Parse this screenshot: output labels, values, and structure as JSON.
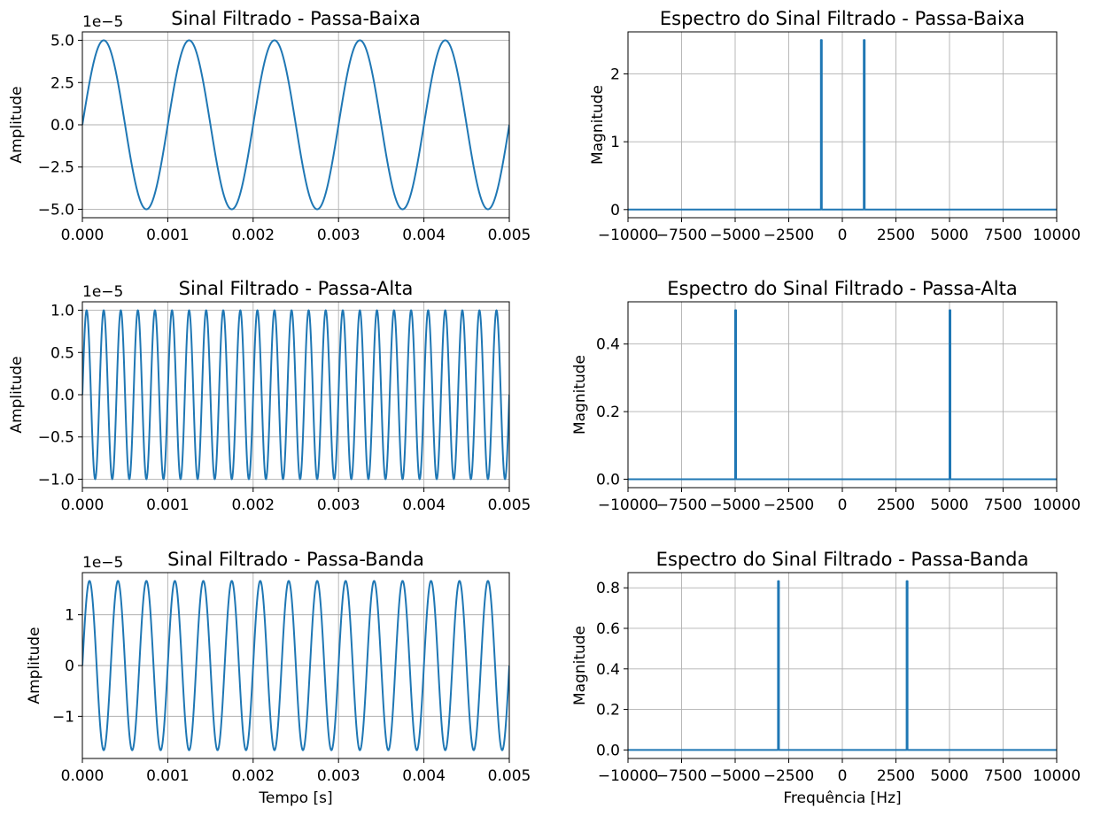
{
  "colors": {
    "line": "#1f77b4"
  },
  "chart_data": [
    {
      "type": "line",
      "title": "Sinal Filtrado - Passa-Baixa",
      "xlabel": "",
      "ylabel": "Amplitude",
      "xlim": [
        0,
        0.005
      ],
      "ylim": [
        -5.5,
        5.5
      ],
      "offset_label": "1e−5",
      "grid": true,
      "xticks": [
        0,
        0.001,
        0.002,
        0.003,
        0.004,
        0.005
      ],
      "xtick_labels": [
        "0.000",
        "0.001",
        "0.002",
        "0.003",
        "0.004",
        "0.005"
      ],
      "yticks": [
        5.0,
        2.5,
        0.0,
        -2.5,
        -5.0
      ],
      "ytick_labels": [
        "5.0",
        "2.5",
        "0.0",
        "−2.5",
        "−5.0"
      ],
      "series": [
        {
          "kind": "sine",
          "amplitude": 5.0,
          "frequency_hz": 1000
        }
      ]
    },
    {
      "type": "line",
      "title": "Espectro do Sinal Filtrado - Passa-Baixa",
      "xlabel": "",
      "ylabel": "Magnitude",
      "xlim": [
        -10000,
        10000
      ],
      "ylim": [
        -0.12,
        2.62
      ],
      "grid": true,
      "xticks": [
        -10000,
        -7500,
        -5000,
        -2500,
        0,
        2500,
        5000,
        7500,
        10000
      ],
      "xtick_labels": [
        "−10000",
        "−7500",
        "−5000",
        "−2500",
        "0",
        "2500",
        "5000",
        "7500",
        "10000"
      ],
      "yticks": [
        2,
        1,
        0
      ],
      "ytick_labels": [
        "2",
        "1",
        "0"
      ],
      "series": [
        {
          "kind": "spectrum",
          "baseline": 0,
          "peaks": [
            {
              "x": -1000,
              "y": 2.5
            },
            {
              "x": 1000,
              "y": 2.5
            }
          ]
        }
      ]
    },
    {
      "type": "line",
      "title": "Sinal Filtrado - Passa-Alta",
      "xlabel": "",
      "ylabel": "Amplitude",
      "xlim": [
        0,
        0.005
      ],
      "ylim": [
        -1.1,
        1.1
      ],
      "offset_label": "1e−5",
      "grid": true,
      "xticks": [
        0,
        0.001,
        0.002,
        0.003,
        0.004,
        0.005
      ],
      "xtick_labels": [
        "0.000",
        "0.001",
        "0.002",
        "0.003",
        "0.004",
        "0.005"
      ],
      "yticks": [
        1.0,
        0.5,
        0.0,
        -0.5,
        -1.0
      ],
      "ytick_labels": [
        "1.0",
        "0.5",
        "0.0",
        "−0.5",
        "−1.0"
      ],
      "series": [
        {
          "kind": "sine",
          "amplitude": 1.0,
          "frequency_hz": 5000
        }
      ]
    },
    {
      "type": "line",
      "title": "Espectro do Sinal Filtrado - Passa-Alta",
      "xlabel": "",
      "ylabel": "Magnitude",
      "xlim": [
        -10000,
        10000
      ],
      "ylim": [
        -0.025,
        0.525
      ],
      "grid": true,
      "xticks": [
        -10000,
        -7500,
        -5000,
        -2500,
        0,
        2500,
        5000,
        7500,
        10000
      ],
      "xtick_labels": [
        "−10000",
        "−7500",
        "−5000",
        "−2500",
        "0",
        "2500",
        "5000",
        "7500",
        "10000"
      ],
      "yticks": [
        0.4,
        0.2,
        0.0
      ],
      "ytick_labels": [
        "0.4",
        "0.2",
        "0.0"
      ],
      "series": [
        {
          "kind": "spectrum",
          "baseline": 0,
          "peaks": [
            {
              "x": -5000,
              "y": 0.5
            },
            {
              "x": 5000,
              "y": 0.5
            }
          ]
        }
      ]
    },
    {
      "type": "line",
      "title": "Sinal Filtrado - Passa-Banda",
      "xlabel": "Tempo [s]",
      "ylabel": "Amplitude",
      "xlim": [
        0,
        0.005
      ],
      "ylim": [
        -1.83,
        1.83
      ],
      "offset_label": "1e−5",
      "grid": true,
      "xticks": [
        0,
        0.001,
        0.002,
        0.003,
        0.004,
        0.005
      ],
      "xtick_labels": [
        "0.000",
        "0.001",
        "0.002",
        "0.003",
        "0.004",
        "0.005"
      ],
      "yticks": [
        1,
        0,
        -1
      ],
      "ytick_labels": [
        "1",
        "0",
        "−1"
      ],
      "series": [
        {
          "kind": "sine",
          "amplitude": 1.667,
          "frequency_hz": 3000
        }
      ]
    },
    {
      "type": "line",
      "title": "Espectro do Sinal Filtrado - Passa-Banda",
      "xlabel": "Frequência [Hz]",
      "ylabel": "Magnitude",
      "xlim": [
        -10000,
        10000
      ],
      "ylim": [
        -0.042,
        0.875
      ],
      "grid": true,
      "xticks": [
        -10000,
        -7500,
        -5000,
        -2500,
        0,
        2500,
        5000,
        7500,
        10000
      ],
      "xtick_labels": [
        "−10000",
        "−7500",
        "−5000",
        "−2500",
        "0",
        "2500",
        "5000",
        "7500",
        "10000"
      ],
      "yticks": [
        0.8,
        0.6,
        0.4,
        0.2,
        0.0
      ],
      "ytick_labels": [
        "0.8",
        "0.6",
        "0.4",
        "0.2",
        "0.0"
      ],
      "series": [
        {
          "kind": "spectrum",
          "baseline": 0,
          "peaks": [
            {
              "x": -3000,
              "y": 0.833
            },
            {
              "x": 3000,
              "y": 0.833
            }
          ]
        }
      ]
    }
  ]
}
